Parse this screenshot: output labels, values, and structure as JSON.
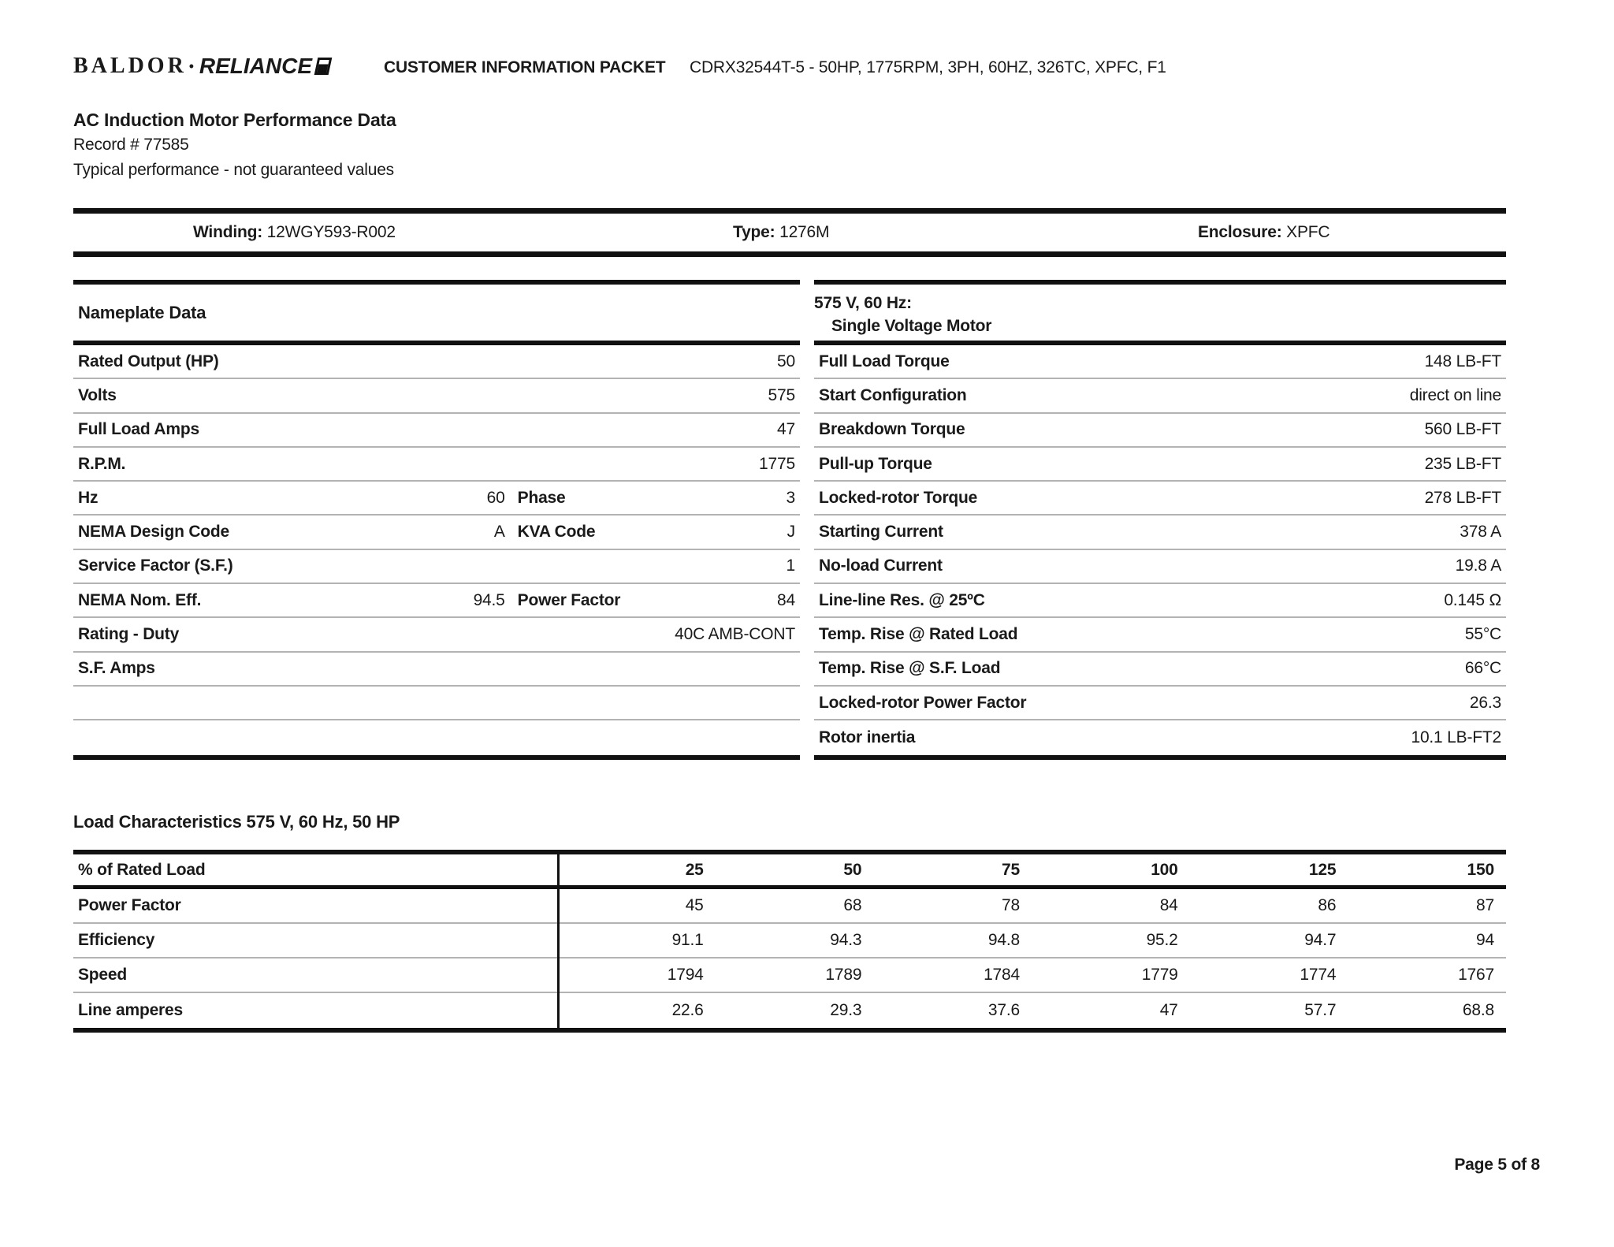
{
  "header": {
    "logo_baldor": "BALDOR",
    "logo_dot": "•",
    "logo_reliance": "RELIANCE",
    "packet_title": "CUSTOMER INFORMATION PACKET",
    "model_line": "CDRX32544T-5 - 50HP, 1775RPM, 3PH, 60HZ, 326TC, XPFC, F1"
  },
  "title_block": {
    "title": "AC Induction Motor Performance Data",
    "record": "Record # 77585",
    "note": "Typical performance - not guaranteed values"
  },
  "winding_bar": {
    "winding_label": "Winding:",
    "winding_value": "12WGY593-R002",
    "type_label": "Type:",
    "type_value": "1276M",
    "enclosure_label": "Enclosure:",
    "enclosure_value": "XPFC"
  },
  "nameplate": {
    "header": "Nameplate Data",
    "rows": [
      {
        "l1": "Rated Output (HP)",
        "v1": "",
        "l2": "",
        "v2": "50"
      },
      {
        "l1": "Volts",
        "v1": "",
        "l2": "",
        "v2": "575"
      },
      {
        "l1": "Full Load Amps",
        "v1": "",
        "l2": "",
        "v2": "47"
      },
      {
        "l1": "R.P.M.",
        "v1": "",
        "l2": "",
        "v2": "1775"
      },
      {
        "l1": "Hz",
        "v1": "60",
        "l2": "Phase",
        "v2": "3"
      },
      {
        "l1": "NEMA Design Code",
        "v1": "A",
        "l2": "KVA Code",
        "v2": "J"
      },
      {
        "l1": "Service Factor (S.F.)",
        "v1": "",
        "l2": "",
        "v2": "1"
      },
      {
        "l1": "NEMA Nom. Eff.",
        "v1": "94.5",
        "l2": "Power Factor",
        "v2": "84"
      },
      {
        "l1": "Rating - Duty",
        "v1": "",
        "l2": "",
        "v2": "40C AMB-CONT"
      },
      {
        "l1": "S.F. Amps",
        "v1": "",
        "l2": "",
        "v2": ""
      },
      {
        "l1": "",
        "v1": "",
        "l2": "",
        "v2": ""
      },
      {
        "l1": "",
        "v1": "",
        "l2": "",
        "v2": ""
      }
    ]
  },
  "voltage_table": {
    "header_line1": "575 V, 60 Hz:",
    "header_line2": "Single Voltage Motor",
    "rows": [
      {
        "label": "Full Load Torque",
        "value": "148 LB-FT"
      },
      {
        "label": "Start Configuration",
        "value": "direct on line"
      },
      {
        "label": "Breakdown Torque",
        "value": "560 LB-FT"
      },
      {
        "label": "Pull-up Torque",
        "value": "235 LB-FT"
      },
      {
        "label": "Locked-rotor Torque",
        "value": "278 LB-FT"
      },
      {
        "label": "Starting Current",
        "value": "378 A"
      },
      {
        "label": "No-load Current",
        "value": "19.8 A"
      },
      {
        "label": "Line-line Res. @ 25ºC",
        "value": "0.145 Ω"
      },
      {
        "label": "Temp. Rise @ Rated Load",
        "value": "55°C"
      },
      {
        "label": "Temp. Rise @ S.F. Load",
        "value": "66°C"
      },
      {
        "label": "Locked-rotor Power Factor",
        "value": "26.3"
      },
      {
        "label": "Rotor inertia",
        "value": "10.1 LB-FT2"
      }
    ]
  },
  "load_characteristics": {
    "title": "Load Characteristics 575 V, 60 Hz, 50 HP",
    "header_label": "% of Rated Load",
    "columns": [
      "25",
      "50",
      "75",
      "100",
      "125",
      "150"
    ],
    "rows": [
      {
        "label": "Power Factor",
        "values": [
          "45",
          "68",
          "78",
          "84",
          "86",
          "87"
        ]
      },
      {
        "label": "Efficiency",
        "values": [
          "91.1",
          "94.3",
          "94.8",
          "95.2",
          "94.7",
          "94"
        ]
      },
      {
        "label": "Speed",
        "values": [
          "1794",
          "1789",
          "1784",
          "1779",
          "1774",
          "1767"
        ]
      },
      {
        "label": "Line amperes",
        "values": [
          "22.6",
          "29.3",
          "37.6",
          "47",
          "57.7",
          "68.8"
        ]
      }
    ]
  },
  "footer": {
    "page": "Page 5 of 8"
  }
}
